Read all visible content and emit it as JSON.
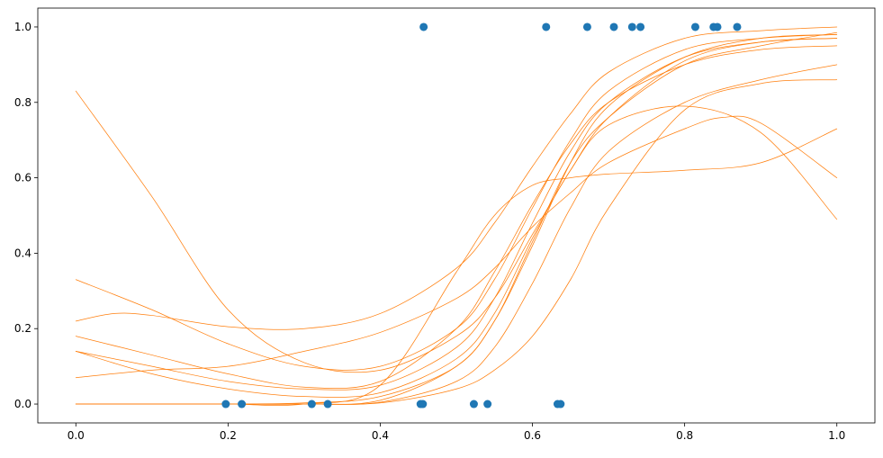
{
  "chart_data": {
    "type": "scatter",
    "title": "",
    "xlabel": "",
    "ylabel": "",
    "xlim": [
      -0.05,
      1.05
    ],
    "ylim": [
      -0.05,
      1.05
    ],
    "grid": false,
    "legend": "none",
    "x_ticks": [
      {
        "value": 0.0,
        "label": "0.0"
      },
      {
        "value": 0.2,
        "label": "0.2"
      },
      {
        "value": 0.4,
        "label": "0.4"
      },
      {
        "value": 0.6,
        "label": "0.6"
      },
      {
        "value": 0.8,
        "label": "0.8"
      },
      {
        "value": 1.0,
        "label": "1.0"
      }
    ],
    "y_ticks": [
      {
        "value": 0.0,
        "label": "0.0"
      },
      {
        "value": 0.2,
        "label": "0.2"
      },
      {
        "value": 0.4,
        "label": "0.4"
      },
      {
        "value": 0.6,
        "label": "0.6"
      },
      {
        "value": 0.8,
        "label": "0.8"
      },
      {
        "value": 1.0,
        "label": "1.0"
      }
    ],
    "colors": {
      "points": "#1f77b4",
      "curves": "#ff7f0e",
      "axes": "#000000"
    },
    "points": {
      "x": [
        0.197,
        0.218,
        0.31,
        0.331,
        0.453,
        0.456,
        0.457,
        0.523,
        0.541,
        0.618,
        0.633,
        0.637,
        0.672,
        0.707,
        0.731,
        0.742,
        0.814,
        0.838,
        0.843,
        0.869
      ],
      "y": [
        0,
        0,
        0,
        0,
        0,
        0,
        1,
        0,
        0,
        1,
        0,
        0,
        1,
        1,
        1,
        1,
        1,
        1,
        1,
        1
      ]
    },
    "curves": [
      {
        "x": [
          0.0,
          0.1,
          0.2,
          0.3,
          0.4,
          0.5,
          0.55,
          0.6,
          0.65,
          0.7,
          0.8,
          0.9,
          1.0
        ],
        "y": [
          0.83,
          0.55,
          0.25,
          0.11,
          0.09,
          0.18,
          0.28,
          0.45,
          0.62,
          0.76,
          0.91,
          0.96,
          0.97
        ]
      },
      {
        "x": [
          0.0,
          0.05,
          0.1,
          0.2,
          0.3,
          0.4,
          0.5,
          0.55,
          0.6,
          0.65,
          0.7,
          0.8,
          0.9,
          1.0
        ],
        "y": [
          0.22,
          0.24,
          0.235,
          0.205,
          0.2,
          0.24,
          0.36,
          0.48,
          0.63,
          0.77,
          0.88,
          0.97,
          0.99,
          1.0
        ]
      },
      {
        "x": [
          0.0,
          0.1,
          0.2,
          0.3,
          0.4,
          0.5,
          0.55,
          0.6,
          0.65,
          0.7,
          0.8,
          0.9,
          1.0
        ],
        "y": [
          0.33,
          0.25,
          0.16,
          0.1,
          0.1,
          0.2,
          0.33,
          0.52,
          0.7,
          0.83,
          0.94,
          0.97,
          0.98
        ]
      },
      {
        "x": [
          0.0,
          0.1,
          0.2,
          0.3,
          0.4,
          0.5,
          0.55,
          0.6,
          0.65,
          0.7,
          0.8,
          0.9,
          1.0
        ],
        "y": [
          0.18,
          0.13,
          0.08,
          0.045,
          0.06,
          0.2,
          0.35,
          0.53,
          0.69,
          0.8,
          0.9,
          0.94,
          0.95
        ]
      },
      {
        "x": [
          0.0,
          0.1,
          0.2,
          0.3,
          0.4,
          0.5,
          0.55,
          0.6,
          0.65,
          0.7,
          0.8,
          0.9,
          1.0
        ],
        "y": [
          0.14,
          0.1,
          0.06,
          0.04,
          0.05,
          0.15,
          0.28,
          0.48,
          0.67,
          0.8,
          0.92,
          0.96,
          0.97
        ]
      },
      {
        "x": [
          0.0,
          0.1,
          0.2,
          0.3,
          0.4,
          0.5,
          0.55,
          0.6,
          0.65,
          0.7,
          0.8,
          0.9,
          1.0
        ],
        "y": [
          0.14,
          0.08,
          0.04,
          0.02,
          0.03,
          0.12,
          0.24,
          0.44,
          0.62,
          0.74,
          0.79,
          0.72,
          0.49
        ]
      },
      {
        "x": [
          0.0,
          0.1,
          0.2,
          0.3,
          0.4,
          0.5,
          0.55,
          0.6,
          0.65,
          0.7,
          0.8,
          0.85,
          0.9,
          1.0
        ],
        "y": [
          0.07,
          0.09,
          0.1,
          0.14,
          0.19,
          0.28,
          0.36,
          0.47,
          0.56,
          0.64,
          0.73,
          0.76,
          0.745,
          0.6
        ]
      },
      {
        "x": [
          0.0,
          0.1,
          0.2,
          0.3,
          0.4,
          0.5,
          0.55,
          0.6,
          0.65,
          0.7,
          0.8,
          0.9,
          1.0
        ],
        "y": [
          0.0,
          0.0,
          0.0,
          0.003,
          0.02,
          0.1,
          0.22,
          0.42,
          0.64,
          0.79,
          0.92,
          0.97,
          0.98
        ]
      },
      {
        "x": [
          0.0,
          0.1,
          0.2,
          0.3,
          0.4,
          0.5,
          0.55,
          0.6,
          0.65,
          0.7,
          0.8,
          0.9,
          1.0
        ],
        "y": [
          0.0,
          0.0,
          0.0,
          0.0,
          0.01,
          0.1,
          0.22,
          0.43,
          0.64,
          0.76,
          0.9,
          0.95,
          0.985
        ]
      },
      {
        "x": [
          0.0,
          0.1,
          0.2,
          0.3,
          0.4,
          0.5,
          0.55,
          0.6,
          0.65,
          0.7,
          0.8,
          0.9,
          1.0
        ],
        "y": [
          0.0,
          0.0,
          0.0,
          0.0,
          0.005,
          0.06,
          0.15,
          0.32,
          0.52,
          0.67,
          0.8,
          0.86,
          0.9
        ]
      },
      {
        "x": [
          0.0,
          0.1,
          0.2,
          0.3,
          0.4,
          0.5,
          0.55,
          0.6,
          0.65,
          0.7,
          0.8,
          0.9,
          1.0
        ],
        "y": [
          0.0,
          0.0,
          0.0,
          0.0,
          0.003,
          0.04,
          0.09,
          0.18,
          0.33,
          0.52,
          0.78,
          0.85,
          0.86
        ]
      },
      {
        "x": [
          0.0,
          0.1,
          0.2,
          0.3,
          0.4,
          0.5,
          0.55,
          0.6,
          0.65,
          0.7,
          0.8,
          0.9,
          1.0
        ],
        "y": [
          0.0,
          0.0,
          0.0,
          0.0,
          0.05,
          0.35,
          0.5,
          0.58,
          0.6,
          0.61,
          0.62,
          0.64,
          0.73
        ]
      }
    ]
  }
}
